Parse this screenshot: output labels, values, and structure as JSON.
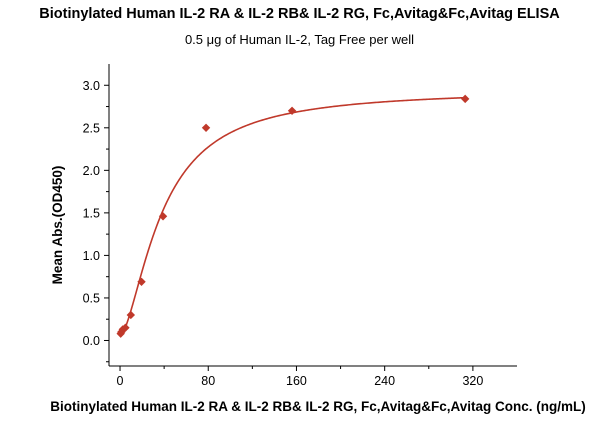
{
  "chart_data": {
    "type": "scatter",
    "title": "Biotinylated Human IL-2 RA & IL-2 RB& IL-2 RG, Fc,Avitag&Fc,Avitag ELISA",
    "subtitle": "0.5 μg of Human IL-2, Tag Free per well",
    "xlabel": "Biotinylated Human IL-2 RA & IL-2 RB& IL-2 RG, Fc,Avitag&Fc,Avitag Conc. (ng/mL)",
    "ylabel": "Mean Abs.(OD450)",
    "xlim": [
      -10,
      360
    ],
    "ylim": [
      -0.3,
      3.25
    ],
    "xticks": [
      0,
      80,
      160,
      240,
      320
    ],
    "yticks": [
      0.0,
      0.5,
      1.0,
      1.5,
      2.0,
      2.5,
      3.0
    ],
    "xtick_labels": [
      "0",
      "80",
      "160",
      "240",
      "320"
    ],
    "ytick_labels": [
      "0.0",
      "0.5",
      "1.0",
      "1.5",
      "2.0",
      "2.5",
      "3.0"
    ],
    "grid": false,
    "legend": "none",
    "series": [
      {
        "marker": "diamond",
        "color": "#c0392b",
        "x": [
          0.6,
          1.2,
          2.5,
          4.9,
          9.8,
          19.5,
          39,
          78,
          156,
          313
        ],
        "y": [
          0.08,
          0.1,
          0.13,
          0.15,
          0.3,
          0.69,
          1.46,
          2.5,
          2.7,
          2.84
        ]
      }
    ],
    "fit": {
      "type": "4pl",
      "color": "#c0392b",
      "bottom": 0.05,
      "top": 2.95,
      "ec50": 38,
      "hill": 1.6
    }
  }
}
